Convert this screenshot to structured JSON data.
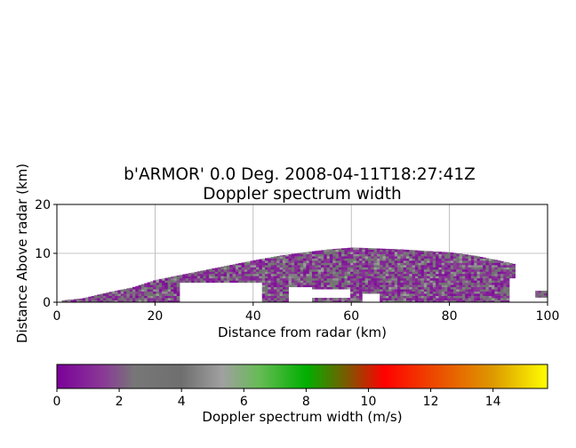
{
  "chart_data": {
    "type": "heatmap",
    "title_line1": "b'ARMOR' 0.0 Deg. 2008-04-11T18:27:41Z",
    "title_line2": "Doppler spectrum width",
    "xlabel": "Distance from radar (km)",
    "ylabel": "Distance Above radar  (km)",
    "xlim": [
      0,
      100
    ],
    "ylim": [
      0,
      20
    ],
    "x_ticks": [
      0,
      20,
      40,
      60,
      80,
      100
    ],
    "y_ticks": [
      0,
      10,
      20
    ],
    "grid": true,
    "echo_top_km": [
      [
        0,
        0.3
      ],
      [
        5,
        0.8
      ],
      [
        10,
        2.0
      ],
      [
        15,
        3.0
      ],
      [
        20,
        4.6
      ],
      [
        25,
        5.6
      ],
      [
        30,
        6.6
      ],
      [
        35,
        7.6
      ],
      [
        40,
        8.6
      ],
      [
        45,
        9.5
      ],
      [
        50,
        10.2
      ],
      [
        55,
        10.8
      ],
      [
        60,
        11.2
      ],
      [
        65,
        11.0
      ],
      [
        70,
        10.8
      ],
      [
        75,
        10.5
      ],
      [
        80,
        10.2
      ],
      [
        85,
        9.5
      ],
      [
        90,
        8.5
      ],
      [
        93,
        7.8
      ]
    ],
    "echo_bottom_km": [
      [
        0,
        0
      ],
      [
        10,
        0
      ],
      [
        20,
        0
      ],
      [
        30,
        0
      ],
      [
        40,
        0
      ],
      [
        50,
        0
      ],
      [
        60,
        0
      ],
      [
        70,
        0
      ],
      [
        80,
        0
      ],
      [
        90,
        0
      ],
      [
        93,
        0
      ]
    ],
    "gaps": [
      {
        "x": [
          25,
          42
        ],
        "y": [
          0,
          4.2
        ]
      },
      {
        "x": [
          47,
          52
        ],
        "y": [
          0,
          3.0
        ]
      },
      {
        "x": [
          52,
          60
        ],
        "y": [
          1.0,
          2.8
        ]
      },
      {
        "x": [
          62,
          66
        ],
        "y": [
          0,
          1.6
        ]
      },
      {
        "x": [
          92,
          98
        ],
        "y": [
          0,
          5.0
        ]
      }
    ],
    "isolated_echo": {
      "x": [
        97.5,
        100
      ],
      "y": [
        1.0,
        2.0
      ]
    },
    "colorbar": {
      "label": "Doppler spectrum width (m/s)",
      "range": [
        0,
        15.75
      ],
      "ticks": [
        0,
        2,
        4,
        6,
        8,
        10,
        12,
        14
      ],
      "stops": [
        {
          "value": 0,
          "color": "#7b0099"
        },
        {
          "value": 1.5,
          "color": "#8a3a96"
        },
        {
          "value": 2.5,
          "color": "#777777"
        },
        {
          "value": 4,
          "color": "#6f6f6f"
        },
        {
          "value": 5.3,
          "color": "#a0a0a0"
        },
        {
          "value": 6.5,
          "color": "#66bb55"
        },
        {
          "value": 8,
          "color": "#00b000"
        },
        {
          "value": 9.3,
          "color": "#7a5a00"
        },
        {
          "value": 10.5,
          "color": "#ff0000"
        },
        {
          "value": 12,
          "color": "#ee4400"
        },
        {
          "value": 14,
          "color": "#dd9900"
        },
        {
          "value": 15.75,
          "color": "#ffff00"
        }
      ]
    }
  }
}
